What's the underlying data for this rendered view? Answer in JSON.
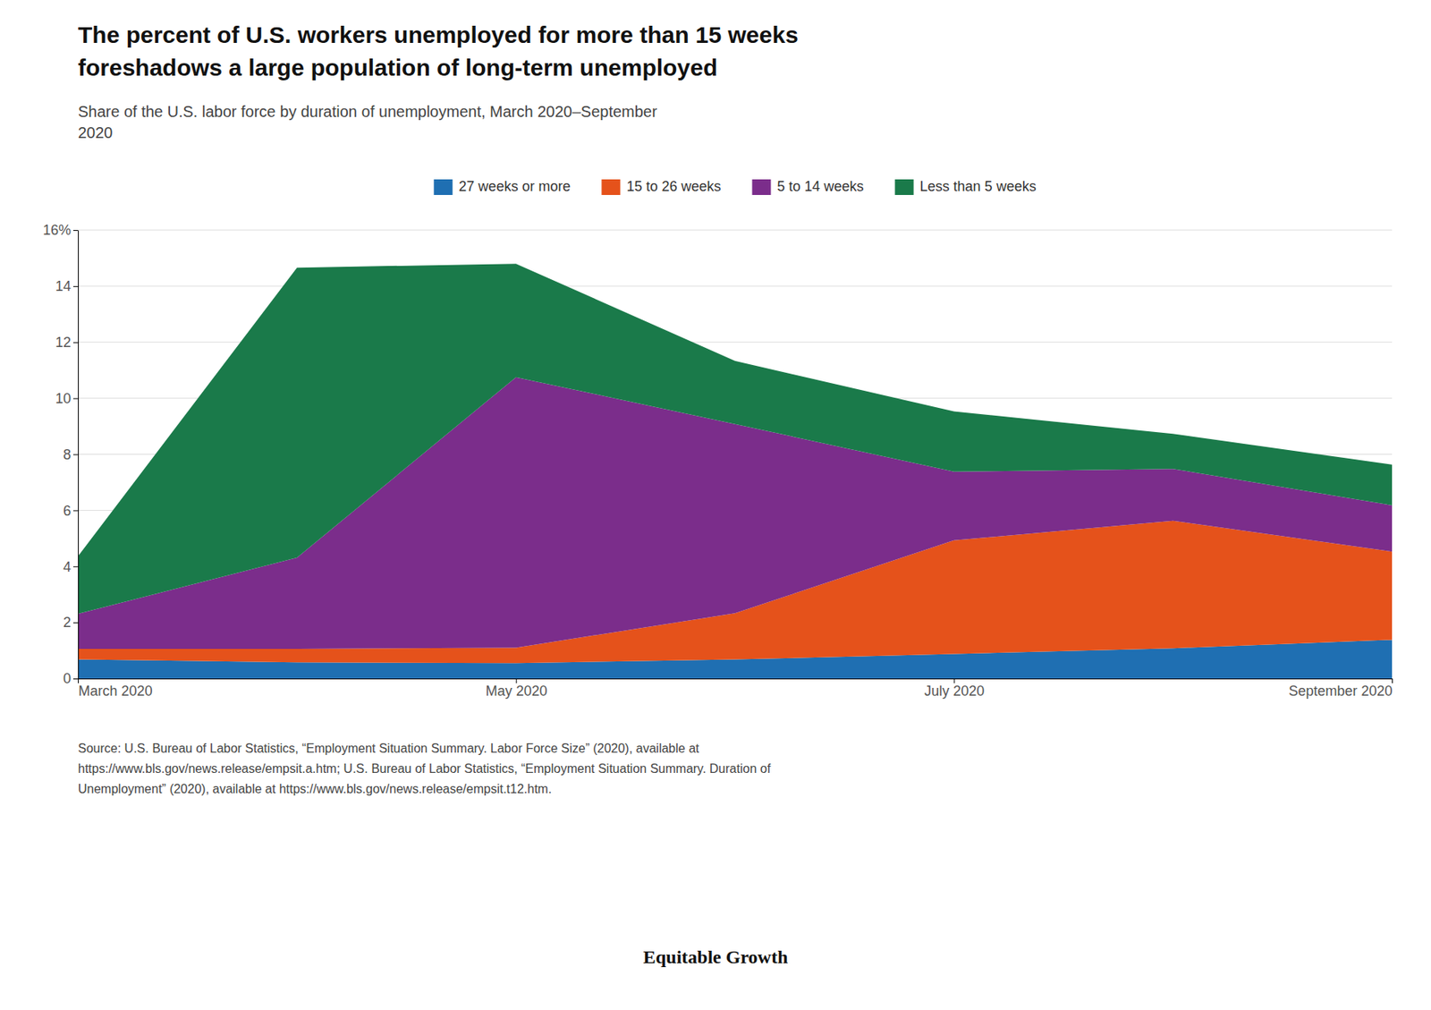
{
  "chart_data": {
    "type": "area",
    "stacked": true,
    "title": "The percent of U.S. workers unemployed for more than 15 weeks\nforeshadows a large population of long-term unemployed",
    "subtitle": "Share of the U.S. labor force by duration of unemployment, March 2020–September\n2020",
    "categories": [
      "March 2020",
      null,
      "May 2020",
      null,
      "July 2020",
      null,
      "September 2020"
    ],
    "series": [
      {
        "name": "27 weeks or more",
        "color": "#1f6fb2",
        "values": [
          0.68,
          0.58,
          0.55,
          0.68,
          0.88,
          1.08,
          1.38
        ]
      },
      {
        "name": "15 to 26 weeks",
        "color": "#e5521b",
        "values": [
          0.38,
          0.48,
          0.55,
          1.65,
          4.05,
          4.55,
          3.15
        ]
      },
      {
        "name": "5 to 14 weeks",
        "color": "#7b2d8b",
        "values": [
          1.25,
          3.25,
          9.65,
          6.75,
          2.45,
          1.85,
          1.65
        ]
      },
      {
        "name": "Less than 5 weeks",
        "color": "#1a7a4a",
        "values": [
          2.05,
          10.35,
          4.05,
          2.25,
          2.15,
          1.25,
          1.45
        ]
      }
    ],
    "ylim": [
      0,
      16
    ],
    "yticks": [
      0,
      2,
      4,
      6,
      8,
      10,
      12,
      14,
      {
        "value": 16,
        "label": "16%"
      }
    ],
    "grid": true,
    "legend": "top",
    "source": "Source: U.S. Bureau of Labor Statistics, “Employment Situation Summary. Labor Force Size” (2020), available at\nhttps://www.bls.gov/news.release/empsit.a.htm; U.S. Bureau of Labor Statistics, “Employment Situation Summary. Duration of\nUnemployment” (2020), available at https://www.bls.gov/news.release/empsit.t12.htm.",
    "annotations": [
      "Equitable Growth"
    ]
  }
}
